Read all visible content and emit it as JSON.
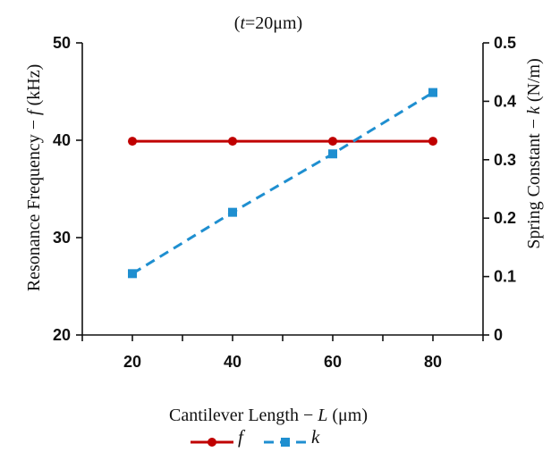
{
  "chart_data": {
    "type": "line",
    "title": "(t=20μm)",
    "title_parts": {
      "open": "(",
      "italic": "t",
      "rest": "=20μm)"
    },
    "xlabel": "Cantilever Length − L (μm)",
    "xlabel_parts": {
      "text": "Cantilever Length − ",
      "italic": "L",
      "rest": " (μm)"
    },
    "ylabel_left": "Resonance Frequency − f (kHz)",
    "ylabel_left_parts": {
      "text": "Resonance Frequency − ",
      "italic": "f",
      "rest": " (kHz)"
    },
    "ylabel_right": "Spring Constant − k (N/m)",
    "ylabel_right_parts": {
      "text": "Spring Constant − ",
      "italic": "k",
      "rest": " (N/m)"
    },
    "x": [
      20,
      40,
      60,
      80
    ],
    "xlim": [
      10,
      90
    ],
    "xticks": [
      20,
      40,
      60,
      80
    ],
    "xtick_labels": [
      "20",
      "40",
      "60",
      "80"
    ],
    "ylim_left": [
      20,
      50
    ],
    "yticks_left": [
      20,
      30,
      40,
      50
    ],
    "ytick_labels_left": [
      "20",
      "30",
      "40",
      "50"
    ],
    "ylim_right": [
      0,
      0.5
    ],
    "yticks_right": [
      0,
      0.1,
      0.2,
      0.3,
      0.4,
      0.5
    ],
    "ytick_labels_right": [
      "0",
      "0.1",
      "0.2",
      "0.3",
      "0.4",
      "0.5"
    ],
    "series": [
      {
        "name": "f",
        "axis": "left",
        "values": [
          39.9,
          39.9,
          39.9,
          39.9
        ],
        "color": "#c00000",
        "marker": "circle",
        "dash": "solid"
      },
      {
        "name": "k",
        "axis": "right",
        "values": [
          0.105,
          0.21,
          0.31,
          0.415
        ],
        "color": "#1f8fd0",
        "marker": "square",
        "dash": "dashed"
      }
    ],
    "legend_position": "bottom-center",
    "grid": false
  }
}
